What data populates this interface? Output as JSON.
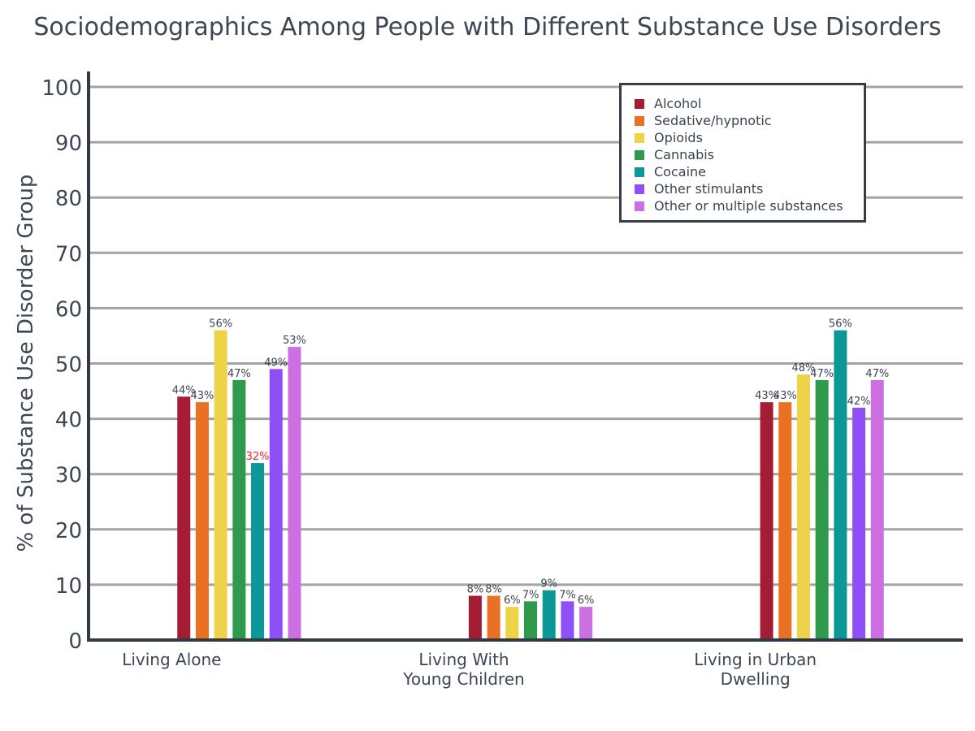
{
  "chart_data": {
    "type": "bar",
    "title": "Sociodemographics Among People with Different Substance Use Disorders",
    "xlabel": "",
    "ylabel": "% of Substance Use Disorder Group",
    "ylim": [
      0,
      100
    ],
    "yticks": [
      0,
      10,
      20,
      30,
      40,
      50,
      60,
      70,
      80,
      90,
      100
    ],
    "grid": true,
    "legend_position": "top-right",
    "categories": [
      [
        "Living Alone"
      ],
      [
        "Living With",
        "Young Children"
      ],
      [
        "Living in Urban",
        "Dwelling"
      ]
    ],
    "series": [
      {
        "name": "Alcohol",
        "color": "#a51d35",
        "values": [
          44,
          8,
          43
        ],
        "labels": [
          "44%",
          "8%",
          "43%"
        ]
      },
      {
        "name": "Sedative/hypnotic",
        "color": "#ea7124",
        "values": [
          43,
          8,
          43
        ],
        "labels": [
          "43%",
          "8%",
          "43%"
        ]
      },
      {
        "name": "Opioids",
        "color": "#edd347",
        "values": [
          56,
          6,
          48
        ],
        "labels": [
          "56%",
          "6%",
          "48%"
        ]
      },
      {
        "name": "Cannabis",
        "color": "#2f9a4c",
        "values": [
          47,
          7,
          47
        ],
        "labels": [
          "47%",
          "7%",
          "47%"
        ]
      },
      {
        "name": "Cocaine",
        "color": "#0c9896",
        "values": [
          32,
          9,
          56
        ],
        "labels": [
          "32%",
          "9%",
          "56%"
        ]
      },
      {
        "name": "Other stimulants",
        "color": "#8e4ff6",
        "values": [
          49,
          7,
          42
        ],
        "labels": [
          "49%",
          "7%",
          "42%"
        ]
      },
      {
        "name": "Other or multiple substances",
        "color": "#cc6fe3",
        "values": [
          53,
          6,
          47
        ],
        "labels": [
          "53%",
          "6%",
          "47%"
        ]
      }
    ],
    "highlight": {
      "series": 4,
      "category": 0,
      "color": "#e3242b"
    }
  }
}
